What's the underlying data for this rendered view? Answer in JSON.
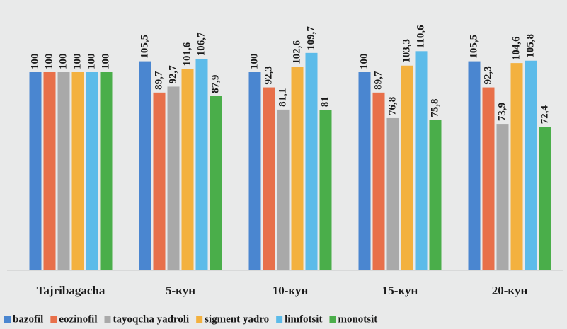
{
  "chart_data": {
    "type": "bar",
    "categories": [
      "Tajribagacha",
      "5-кун",
      "10-кун",
      "15-кун",
      "20-кун"
    ],
    "series": [
      {
        "name": "bazofil",
        "color": "#4a86d0",
        "values": [
          100,
          105.5,
          100,
          100,
          105.5
        ],
        "value_labels": [
          "100",
          "105,5",
          "100",
          "100",
          "105,5"
        ]
      },
      {
        "name": "eozinofil",
        "color": "#e8704a",
        "values": [
          100,
          89.7,
          92.3,
          89.7,
          92.3
        ],
        "value_labels": [
          "100",
          "89,7",
          "92,3",
          "89,7",
          "92,3"
        ]
      },
      {
        "name": "tayoqcha yadroli",
        "color": "#a9a9a9",
        "values": [
          100,
          92.7,
          81.1,
          76.8,
          73.9
        ],
        "value_labels": [
          "100",
          "92,7",
          "81,1",
          "76,8",
          "73,9"
        ]
      },
      {
        "name": "sigment yadro",
        "color": "#f3b13f",
        "values": [
          100,
          101.6,
          102.6,
          103.3,
          104.6
        ],
        "value_labels": [
          "100",
          "101,6",
          "102,6",
          "103,3",
          "104,6"
        ]
      },
      {
        "name": "limfotsit",
        "color": "#5cbbe9",
        "values": [
          100,
          106.7,
          109.7,
          110.6,
          105.8
        ],
        "value_labels": [
          "100",
          "106,7",
          "109,7",
          "110,6",
          "105,8"
        ]
      },
      {
        "name": "monotsit",
        "color": "#4aae4a",
        "values": [
          100,
          87.9,
          81,
          75.8,
          72.4
        ],
        "value_labels": [
          "100",
          "87,9",
          "81",
          "75,8",
          "72,4"
        ]
      }
    ]
  }
}
